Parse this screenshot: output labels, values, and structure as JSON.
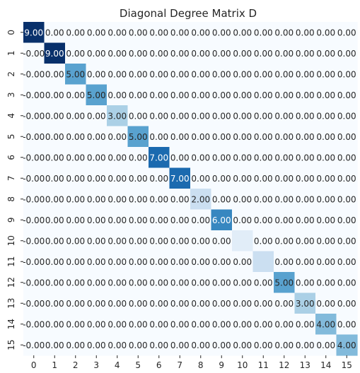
{
  "chart_data": {
    "type": "heatmap",
    "title": "Diagonal Degree Matrix D",
    "xlabel": "",
    "ylabel": "",
    "x_categories": [
      "0",
      "1",
      "2",
      "3",
      "4",
      "5",
      "6",
      "7",
      "8",
      "9",
      "10",
      "11",
      "12",
      "13",
      "14",
      "15"
    ],
    "y_categories": [
      "0",
      "1",
      "2",
      "3",
      "4",
      "5",
      "6",
      "7",
      "8",
      "9",
      "10",
      "11",
      "12",
      "13",
      "14",
      "15"
    ],
    "diagonal_values": [
      9,
      9,
      5,
      5,
      3,
      5,
      7,
      7,
      2,
      6,
      1,
      2,
      5,
      3,
      4,
      4
    ],
    "diagonal_labels": [
      "9.00",
      "9.00",
      "5.00",
      "5.00",
      "3.00",
      "5.00",
      "7.00",
      "7.00",
      "2.00",
      "6.00",
      "",
      "",
      "5.00",
      "3.00",
      "4.00",
      "4.00"
    ],
    "off_diagonal_label": "0.00",
    "off_diagonal_label_lower": "-0.00",
    "value_range": [
      0,
      9
    ],
    "colormap": "Blues",
    "colorbar": false,
    "grid": false
  }
}
